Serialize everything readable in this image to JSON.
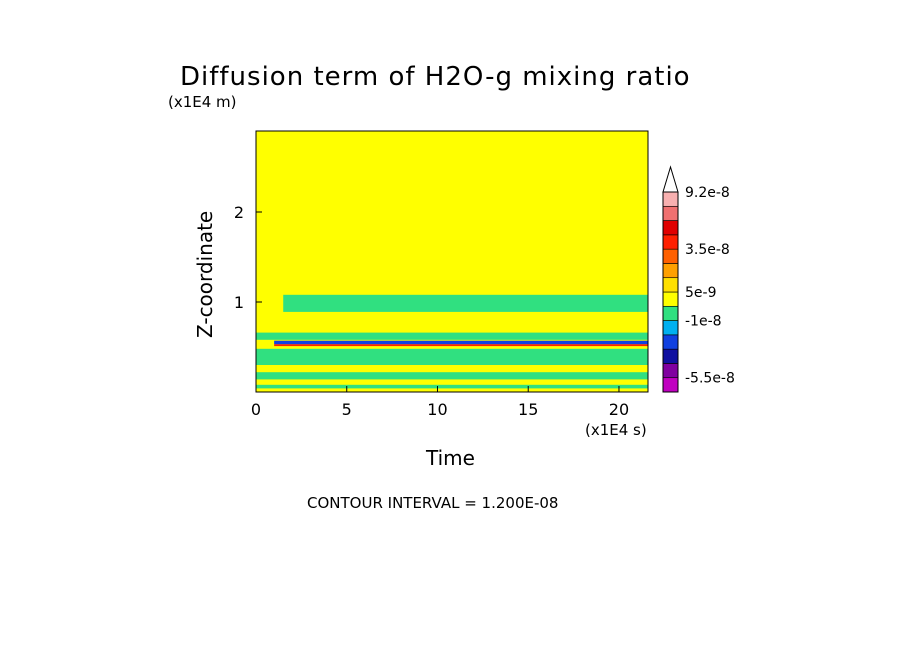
{
  "chart_data": {
    "type": "heatmap",
    "title": "Diffusion term of H2O-g mixing ratio",
    "xlabel": "Time",
    "ylabel": "Z-coordinate",
    "x_unit": "(x1E4 s)",
    "y_unit": "(x1E4 m)",
    "xlim": [
      0,
      21.6
    ],
    "ylim": [
      0,
      2.9
    ],
    "x_ticks": [
      0,
      5,
      10,
      15,
      20
    ],
    "x_tick_labels": [
      "0",
      "5",
      "10",
      "15",
      "20"
    ],
    "y_ticks": [
      1,
      2
    ],
    "y_tick_labels": [
      "1",
      "2"
    ],
    "contour_interval_text": "CONTOUR INTERVAL = 1.200E-08",
    "colorbar": {
      "levels": [
        "-6.7e-8",
        "-5.5e-8",
        "-4.3e-8",
        "-3.1e-8",
        "-1.9e-8",
        "-1e-8",
        "-4e-9",
        "5e-9",
        "1.1e-8",
        "2.3e-8",
        "3.5e-8",
        "4.7e-8",
        "6.8e-8",
        "8e-8",
        "9.2e-8"
      ],
      "colors": [
        "#c000c0",
        "#8000a0",
        "#1010a0",
        "#1040e0",
        "#00b0f0",
        "#30e080",
        "#ffff00",
        "#ffe000",
        "#ffa000",
        "#ff6000",
        "#ff2000",
        "#e00000",
        "#f07070",
        "#f8b0b0",
        "#ffffff"
      ],
      "labels": [
        "9.2e-8",
        "3.5e-8",
        "5e-9",
        "-1e-8",
        "-5.5e-8"
      ],
      "label_levels": [
        9.2e-08,
        3.5e-08,
        5e-09,
        -1e-08,
        -5.5e-08
      ]
    },
    "background_value_color": "#ffff00",
    "bands": [
      {
        "t0": 1.5,
        "t1": 21.6,
        "z0": 0.89,
        "z1": 1.08,
        "color": "#30e080"
      },
      {
        "t0": 0.0,
        "t1": 21.6,
        "z0": 0.58,
        "z1": 0.66,
        "color": "#30e080"
      },
      {
        "t0": 1.0,
        "t1": 21.6,
        "z0": 0.53,
        "z1": 0.57,
        "color": "#1040e0"
      },
      {
        "t0": 1.0,
        "t1": 21.6,
        "z0": 0.51,
        "z1": 0.53,
        "color": "#ff2000"
      },
      {
        "t0": 0.0,
        "t1": 21.6,
        "z0": 0.3,
        "z1": 0.48,
        "color": "#30e080"
      },
      {
        "t0": 0.0,
        "t1": 21.6,
        "z0": 0.14,
        "z1": 0.22,
        "color": "#30e080"
      },
      {
        "t0": 0.0,
        "t1": 21.6,
        "z0": 0.04,
        "z1": 0.08,
        "color": "#30e080"
      }
    ]
  }
}
